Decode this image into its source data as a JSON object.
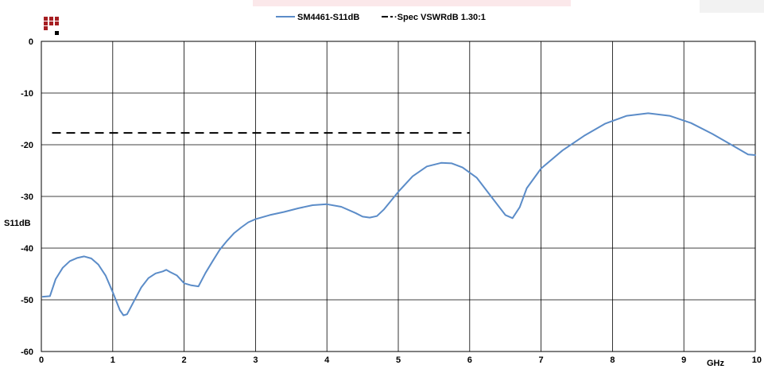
{
  "chart_data": {
    "type": "line",
    "xlabel": "GHz",
    "ylabel": "S11dB",
    "xlim": [
      0,
      10
    ],
    "ylim": [
      -60,
      0
    ],
    "x_ticks": [
      "0",
      "1",
      "2",
      "3",
      "4",
      "5",
      "6",
      "7",
      "8",
      "9",
      "10"
    ],
    "y_ticks": [
      "0",
      "-10",
      "-20",
      "-30",
      "-40",
      "-50",
      "-60"
    ],
    "grid": true,
    "legend_position": "top-center",
    "series": [
      {
        "name": "SM4461-S11dB",
        "color": "#5b8cc8",
        "style": "solid",
        "x": [
          0.02,
          0.12,
          0.2,
          0.3,
          0.4,
          0.5,
          0.6,
          0.7,
          0.8,
          0.9,
          1.0,
          1.1,
          1.15,
          1.2,
          1.3,
          1.4,
          1.5,
          1.6,
          1.7,
          1.75,
          1.8,
          1.9,
          2.0,
          2.1,
          2.2,
          2.3,
          2.4,
          2.5,
          2.6,
          2.7,
          2.8,
          2.9,
          3.0,
          3.2,
          3.4,
          3.6,
          3.8,
          4.0,
          4.2,
          4.4,
          4.5,
          4.6,
          4.7,
          4.8,
          5.0,
          5.2,
          5.4,
          5.6,
          5.75,
          5.9,
          6.1,
          6.3,
          6.5,
          6.6,
          6.7,
          6.8,
          7.0,
          7.3,
          7.6,
          7.9,
          8.2,
          8.5,
          8.8,
          9.1,
          9.4,
          9.7,
          9.9,
          10.0
        ],
        "y": [
          -49.4,
          -49.3,
          -46.0,
          -43.8,
          -42.5,
          -41.9,
          -41.6,
          -42.0,
          -43.2,
          -45.3,
          -48.5,
          -52.0,
          -53.0,
          -52.8,
          -50.2,
          -47.6,
          -45.8,
          -44.9,
          -44.5,
          -44.2,
          -44.6,
          -45.3,
          -46.8,
          -47.2,
          -47.4,
          -44.8,
          -42.5,
          -40.3,
          -38.6,
          -37.1,
          -36.0,
          -35.0,
          -34.4,
          -33.6,
          -33.0,
          -32.3,
          -31.7,
          -31.5,
          -32.0,
          -33.2,
          -33.9,
          -34.1,
          -33.8,
          -32.5,
          -29.1,
          -26.1,
          -24.2,
          -23.5,
          -23.6,
          -24.4,
          -26.4,
          -30.0,
          -33.6,
          -34.2,
          -32.1,
          -28.4,
          -24.6,
          -21.1,
          -18.3,
          -15.9,
          -14.4,
          -13.9,
          -14.4,
          -15.8,
          -17.9,
          -20.3,
          -21.9,
          -22.0
        ]
      },
      {
        "name": "Spec VSWRdB 1.30:1",
        "color": "#000000",
        "style": "dashed",
        "x": [
          0.15,
          6.0
        ],
        "y": [
          -17.7,
          -17.7
        ]
      }
    ]
  },
  "legend": {
    "items": [
      {
        "label": "SM4461-S11dB",
        "color": "#5b8cc8",
        "style": "solid"
      },
      {
        "label": "·Spec VSWRdB 1.30:1",
        "color": "#000000",
        "style": "dashed"
      }
    ]
  },
  "logo": {
    "name": "company-logo",
    "colors": [
      "#a61e22",
      "#000000"
    ]
  }
}
